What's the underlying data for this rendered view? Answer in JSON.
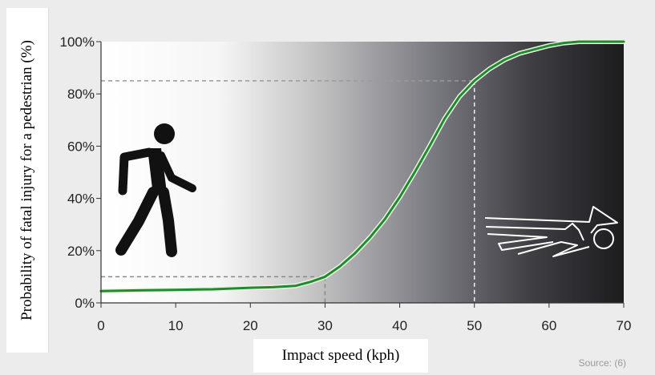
{
  "chart_data": {
    "type": "line",
    "xlabel": "Impact speed (kph)",
    "ylabel": "Probability of fatal injury for a pedestrian (%)",
    "xlim": [
      0,
      70
    ],
    "ylim": [
      0,
      100
    ],
    "x_ticks": [
      0,
      10,
      20,
      30,
      40,
      50,
      60,
      70
    ],
    "y_ticks": [
      "0%",
      "20%",
      "40%",
      "60%",
      "80%",
      "100%"
    ],
    "series": [
      {
        "color": "#1f8a2e",
        "x": [
          0,
          5,
          10,
          15,
          20,
          23,
          26,
          28,
          30,
          32,
          34,
          36,
          38,
          40,
          42,
          44,
          46,
          48,
          50,
          52,
          54,
          56,
          58,
          60,
          62,
          64,
          66,
          68,
          70
        ],
        "y": [
          4.5,
          4.8,
          5.0,
          5.2,
          5.8,
          6.0,
          6.5,
          8.0,
          10.0,
          14.0,
          19.0,
          25.0,
          32.0,
          40.5,
          50.0,
          60.0,
          70.5,
          79.0,
          85.0,
          89.5,
          93.0,
          95.5,
          97.0,
          98.5,
          99.5,
          100.0,
          100.0,
          100.0,
          100.0
        ]
      }
    ],
    "reference_lines": [
      {
        "x": 30,
        "y": 10
      },
      {
        "x": 50,
        "y": 85
      }
    ],
    "background": "gradient white to black, darkening from 30 to 70 kph",
    "source": "Source: (6)",
    "grid": false
  }
}
